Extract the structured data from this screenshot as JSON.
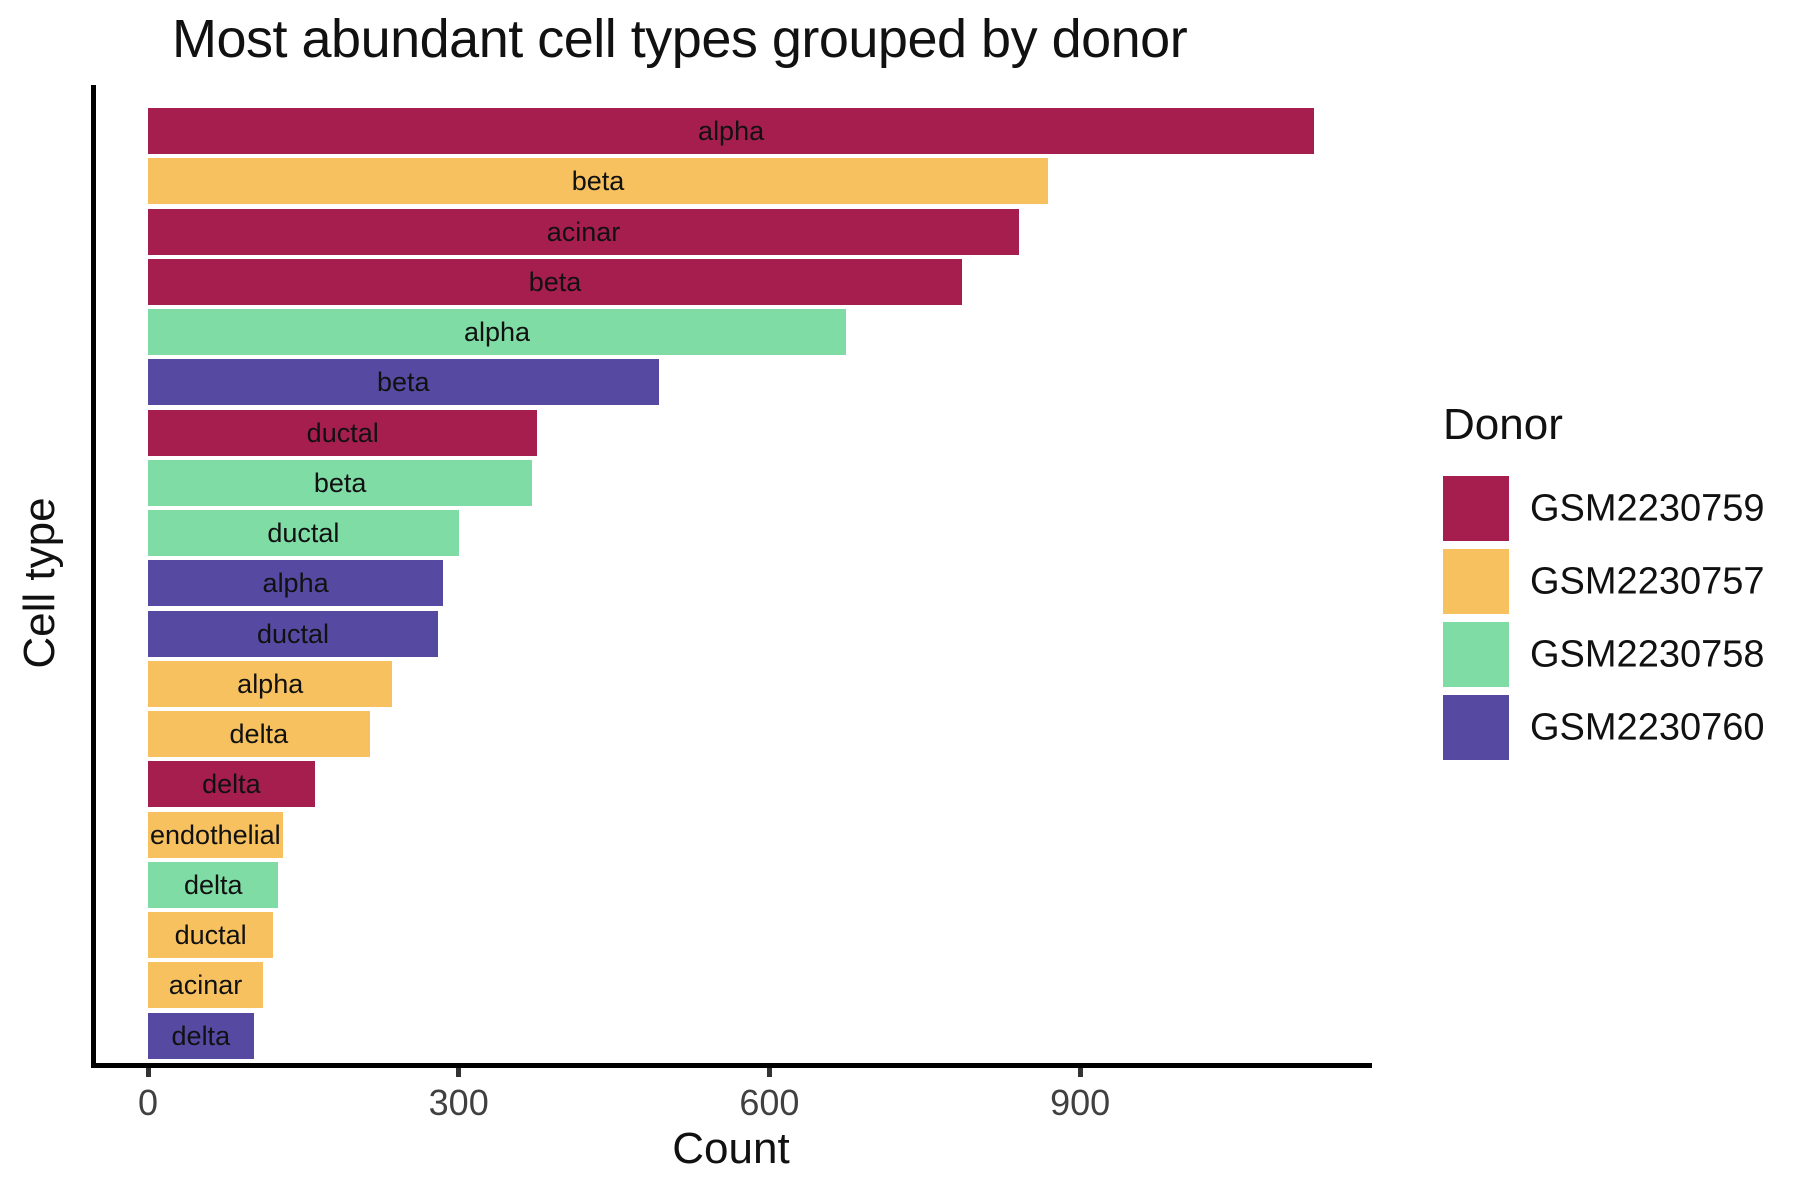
{
  "title": "Most abundant cell types grouped by donor",
  "chart_data": {
    "type": "bar",
    "orientation": "horizontal",
    "title": "Most abundant cell types grouped by donor",
    "xlabel": "Count",
    "ylabel": "Cell type",
    "xlim": [
      0,
      1182
    ],
    "x_ticks": [
      0,
      300,
      600,
      900
    ],
    "grid": false,
    "bar_value_labels": "cell type name centered inside each bar",
    "legend": {
      "title": "Donor",
      "position": "right",
      "entries": [
        {
          "label": "GSM2230759",
          "color": "#A61E4D"
        },
        {
          "label": "GSM2230757",
          "color": "#F7C15F"
        },
        {
          "label": "GSM2230758",
          "color": "#7FDCA5"
        },
        {
          "label": "GSM2230760",
          "color": "#5649A2"
        }
      ]
    },
    "bars": [
      {
        "label": "alpha",
        "donor": "GSM2230759",
        "value": 1126
      },
      {
        "label": "beta",
        "donor": "GSM2230757",
        "value": 869
      },
      {
        "label": "acinar",
        "donor": "GSM2230759",
        "value": 841
      },
      {
        "label": "beta",
        "donor": "GSM2230759",
        "value": 786
      },
      {
        "label": "alpha",
        "donor": "GSM2230758",
        "value": 674
      },
      {
        "label": "beta",
        "donor": "GSM2230760",
        "value": 493
      },
      {
        "label": "ductal",
        "donor": "GSM2230759",
        "value": 376
      },
      {
        "label": "beta",
        "donor": "GSM2230758",
        "value": 371
      },
      {
        "label": "ductal",
        "donor": "GSM2230758",
        "value": 300
      },
      {
        "label": "alpha",
        "donor": "GSM2230760",
        "value": 285
      },
      {
        "label": "ductal",
        "donor": "GSM2230760",
        "value": 280
      },
      {
        "label": "alpha",
        "donor": "GSM2230757",
        "value": 236
      },
      {
        "label": "delta",
        "donor": "GSM2230757",
        "value": 214
      },
      {
        "label": "delta",
        "donor": "GSM2230759",
        "value": 161
      },
      {
        "label": "endothelial",
        "donor": "GSM2230757",
        "value": 130
      },
      {
        "label": "delta",
        "donor": "GSM2230758",
        "value": 126
      },
      {
        "label": "ductal",
        "donor": "GSM2230757",
        "value": 121
      },
      {
        "label": "acinar",
        "donor": "GSM2230757",
        "value": 111
      },
      {
        "label": "delta",
        "donor": "GSM2230760",
        "value": 102
      }
    ]
  },
  "colors": {
    "accent_crimson": "#A61E4D",
    "accent_orange": "#F7C15F",
    "accent_green": "#7FDCA5",
    "accent_purple": "#5649A2",
    "axis_line": "#000000",
    "tick_label": "#404040",
    "text": "#111111"
  }
}
